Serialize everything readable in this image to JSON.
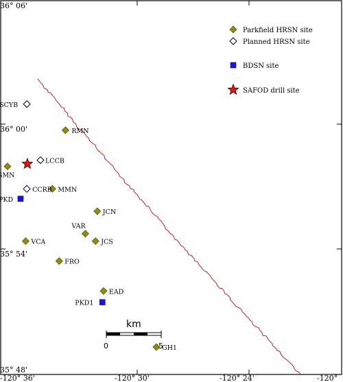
{
  "axes": {
    "lat_labels": [
      "36° 06'",
      "36° 00'",
      "35° 54'",
      "35° 48'"
    ],
    "lon_labels": [
      "-120° 36'",
      "-120° 30'",
      "-120° 24'",
      "-120°"
    ]
  },
  "legend": [
    {
      "symbol": "diamond-filled",
      "label": "Parkfield HRSN site"
    },
    {
      "symbol": "diamond-open",
      "label": "Planned HRSN site"
    },
    {
      "symbol": "square-bdsn",
      "label": "BDSN site"
    },
    {
      "symbol": "star",
      "label": "SAFOD drill site"
    }
  ],
  "sites": [
    {
      "name": "SCYB",
      "type": "diamond-open",
      "lon": -120.554,
      "lat": 36.017
    },
    {
      "name": "RMN",
      "type": "diamond-filled",
      "lon": -120.486,
      "lat": 35.996
    },
    {
      "name": "LCCB",
      "type": "diamond-open",
      "lon": -120.53,
      "lat": 35.972
    },
    {
      "name": "SMN",
      "type": "diamond-filled",
      "lon": -120.588,
      "lat": 35.967
    },
    {
      "name": "",
      "type": "star",
      "lon": -120.553,
      "lat": 35.969
    },
    {
      "name": "MMN",
      "type": "diamond-filled",
      "lon": -120.509,
      "lat": 35.949
    },
    {
      "name": "CCRB",
      "type": "diamond-open",
      "lon": -120.554,
      "lat": 35.949
    },
    {
      "name": "PKD",
      "type": "square-bdsn",
      "lon": -120.565,
      "lat": 35.941
    },
    {
      "name": "JCN",
      "type": "diamond-filled",
      "lon": -120.43,
      "lat": 35.931
    },
    {
      "name": "VAR",
      "type": "diamond-filled",
      "lon": -120.451,
      "lat": 35.913
    },
    {
      "name": "JCS",
      "type": "diamond-filled",
      "lon": -120.433,
      "lat": 35.907
    },
    {
      "name": "VCA",
      "type": "diamond-filled",
      "lon": -120.556,
      "lat": 35.907
    },
    {
      "name": "FRO",
      "type": "diamond-filled",
      "lon": -120.497,
      "lat": 35.891
    },
    {
      "name": "EAD",
      "type": "diamond-filled",
      "lon": -120.419,
      "lat": 35.867
    },
    {
      "name": "PKD1",
      "type": "square-bdsn",
      "lon": -120.421,
      "lat": 35.858
    },
    {
      "name": "GH1",
      "type": "diamond-filled",
      "lon": -120.326,
      "lat": 35.822
    }
  ],
  "scale_bar": {
    "unit": "km",
    "ticks": [
      "0",
      "5"
    ]
  },
  "colors": {
    "fault": "#b0101a",
    "parkfield_site": "#8d8d14",
    "bdsn_site": "#1616e0",
    "safod_star": "#d41a1a"
  }
}
